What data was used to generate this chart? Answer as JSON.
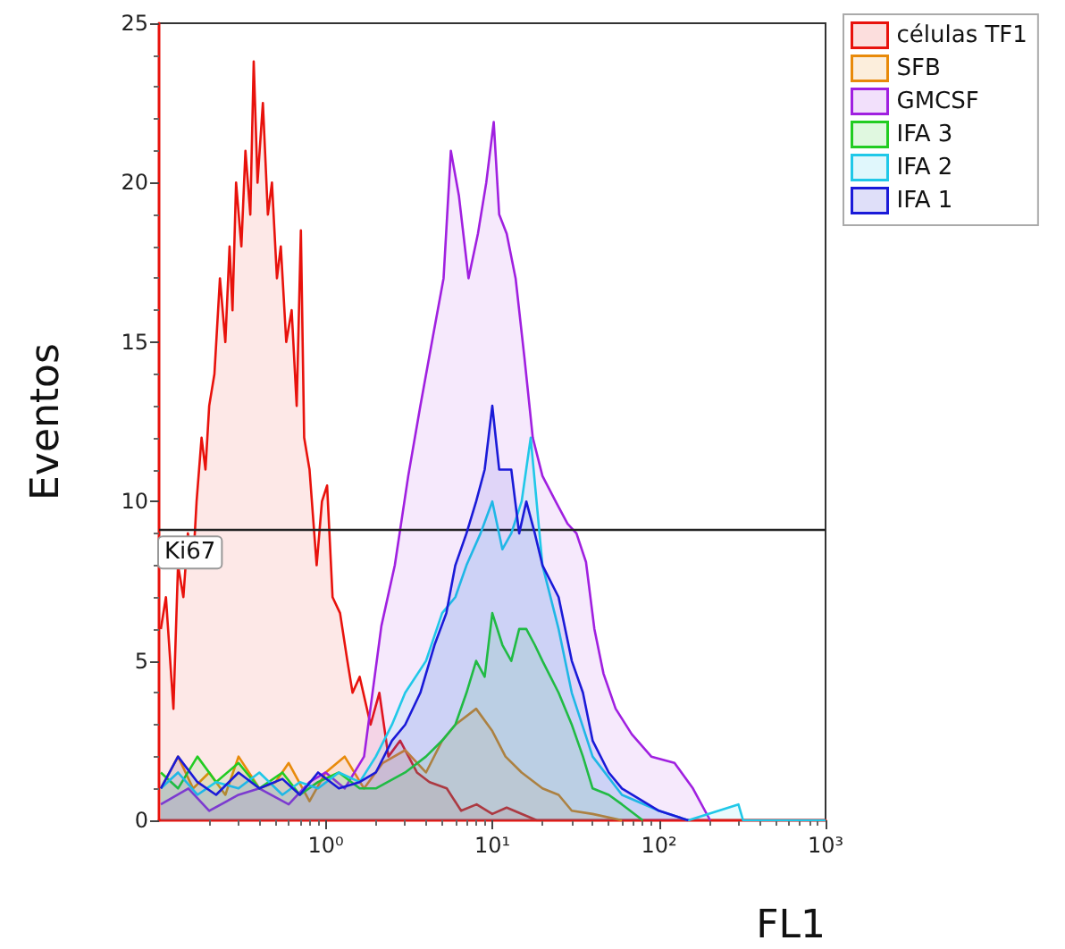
{
  "chart_data": {
    "type": "area",
    "xlabel": "FL1",
    "ylabel": "Eventos",
    "log": "x",
    "grid": false,
    "legend": "top right",
    "xlim": [
      0.1,
      1000
    ],
    "xticks": [
      {
        "value": 1,
        "label": "10⁰"
      },
      {
        "value": 10,
        "label": "10¹"
      },
      {
        "value": 100,
        "label": "10²"
      },
      {
        "value": 1000,
        "label": "10³"
      }
    ],
    "ylim": [
      0,
      25
    ],
    "yticks": [
      0,
      5,
      10,
      15,
      20,
      25
    ],
    "ref_lines": [
      {
        "axis": "y",
        "value": 9.1,
        "label": "Ki67",
        "color": "#222222"
      }
    ],
    "series": [
      {
        "name": "células TF1",
        "color": "#e8120c",
        "x": [
          0.1025,
          0.11,
          0.122,
          0.13,
          0.14,
          0.149,
          0.16,
          0.168,
          0.18,
          0.19,
          0.2,
          0.215,
          0.232,
          0.25,
          0.265,
          0.276,
          0.29,
          0.312,
          0.33,
          0.353,
          0.37,
          0.39,
          0.42,
          0.45,
          0.476,
          0.51,
          0.538,
          0.58,
          0.625,
          0.67,
          0.71,
          0.743,
          0.8,
          0.883,
          0.95,
          1.02,
          1.1,
          1.22,
          1.35,
          1.45,
          1.6,
          1.86,
          2.1,
          2.38,
          2.8,
          3.53,
          4.2,
          5.33,
          6.5,
          8.05,
          10,
          12.2,
          18.5,
          1000
        ],
        "values": [
          6,
          7,
          3.5,
          8,
          7,
          9,
          8,
          10,
          12,
          11,
          13,
          14,
          17,
          15,
          18,
          16,
          20,
          18,
          21,
          19,
          23.8,
          20,
          22.5,
          19,
          20,
          17,
          18,
          15,
          16,
          13,
          18.5,
          12,
          11,
          8,
          10,
          10.5,
          7,
          6.5,
          5,
          4,
          4.5,
          3,
          4,
          2,
          2.5,
          1.5,
          1.2,
          1,
          0.3,
          0.5,
          0.2,
          0.4,
          0,
          0
        ]
      },
      {
        "name": "SFB",
        "color": "#e88a0a",
        "x": [
          0.1025,
          0.13,
          0.16,
          0.2,
          0.25,
          0.3,
          0.4,
          0.5,
          0.6,
          0.8,
          1,
          1.3,
          1.7,
          2.2,
          3,
          4,
          5,
          6,
          8,
          10,
          12,
          15,
          20,
          25,
          30,
          40,
          60
        ],
        "values": [
          1,
          2,
          1,
          1.5,
          0.8,
          2,
          1,
          1.2,
          1.8,
          0.6,
          1.5,
          2,
          1,
          1.8,
          2.2,
          1.5,
          2.5,
          3,
          3.5,
          2.8,
          2,
          1.5,
          1,
          0.8,
          0.3,
          0.2,
          0
        ]
      },
      {
        "name": "GMCSF",
        "color": "#a020e0",
        "x": [
          0.1025,
          0.15,
          0.2,
          0.3,
          0.4,
          0.6,
          0.8,
          1,
          1.3,
          1.7,
          2.16,
          2.6,
          3.13,
          3.7,
          4.41,
          5.1,
          5.64,
          6.3,
          7.2,
          8.2,
          9.2,
          10.2,
          11,
          12.2,
          13.8,
          15.6,
          17.5,
          20,
          24,
          28.3,
          32,
          36.5,
          41,
          46.5,
          55,
          68.7,
          90,
          124,
          160,
          203
        ],
        "values": [
          0.5,
          1,
          0.3,
          0.8,
          1,
          0.5,
          1.2,
          1.5,
          1,
          2,
          6.1,
          8,
          10.8,
          13,
          15.2,
          17,
          21,
          19.6,
          17,
          18.4,
          20,
          21.9,
          19,
          18.4,
          17,
          14.5,
          12,
          10.8,
          10,
          9.3,
          9,
          8.1,
          6,
          4.6,
          3.5,
          2.7,
          2,
          1.8,
          1,
          0
        ]
      },
      {
        "name": "IFA 3",
        "color": "#22cc22",
        "x": [
          0.1025,
          0.13,
          0.17,
          0.22,
          0.3,
          0.4,
          0.55,
          0.7,
          0.9,
          1.2,
          1.6,
          2,
          3,
          4,
          5,
          6,
          7,
          8,
          9,
          10,
          11.5,
          13,
          14.5,
          16,
          18,
          20,
          25,
          30,
          35,
          40,
          50,
          60,
          80
        ],
        "values": [
          1.5,
          1,
          2,
          1.2,
          1.8,
          1,
          1.5,
          0.8,
          1.2,
          1.5,
          1,
          1,
          1.5,
          2,
          2.5,
          3,
          4,
          5,
          4.5,
          6.5,
          5.5,
          5,
          6,
          6,
          5.5,
          5,
          4,
          3,
          2,
          1,
          0.8,
          0.5,
          0
        ]
      },
      {
        "name": "IFA 2",
        "color": "#20c8e8",
        "x": [
          0.1025,
          0.13,
          0.17,
          0.22,
          0.3,
          0.4,
          0.55,
          0.7,
          0.9,
          1.2,
          1.6,
          2,
          2.5,
          3,
          4,
          5,
          6,
          7,
          8.5,
          10,
          11.5,
          13,
          15,
          17,
          20,
          25,
          30,
          40,
          60,
          100,
          150,
          300,
          320,
          1000
        ],
        "values": [
          1,
          1.5,
          0.8,
          1.2,
          1,
          1.5,
          0.8,
          1.2,
          1,
          1.5,
          1.2,
          2,
          3,
          4,
          5,
          6.5,
          7,
          8,
          9,
          10,
          8.5,
          9,
          10,
          12,
          8,
          6,
          4,
          2,
          0.8,
          0.3,
          0,
          0.5,
          0,
          0
        ]
      },
      {
        "name": "IFA 1",
        "color": "#1a1ad8",
        "x": [
          0.1025,
          0.13,
          0.17,
          0.22,
          0.3,
          0.4,
          0.55,
          0.7,
          0.9,
          1.2,
          1.6,
          2,
          2.5,
          3,
          3.7,
          4.5,
          5.3,
          6,
          7,
          8,
          9,
          10,
          11,
          13,
          14.5,
          16,
          18,
          20,
          25,
          30,
          35,
          40,
          50,
          60,
          100,
          150
        ],
        "values": [
          1,
          2,
          1.2,
          0.8,
          1.5,
          1,
          1.3,
          0.8,
          1.5,
          1,
          1.2,
          1.5,
          2.5,
          3,
          4,
          5.5,
          6.5,
          8,
          9,
          10,
          11,
          13,
          11,
          11,
          9,
          10,
          9,
          8,
          7,
          5,
          4,
          2.5,
          1.5,
          1,
          0.3,
          0
        ]
      }
    ]
  }
}
